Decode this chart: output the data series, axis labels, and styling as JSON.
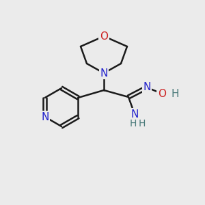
{
  "background_color": "#ebebeb",
  "bond_color": "#1a1a1a",
  "bond_width": 1.8,
  "atom_colors": {
    "C": "#1a1a1a",
    "N": "#2222cc",
    "O": "#cc2222",
    "H": "#4a7a7a"
  },
  "font_size": 11,
  "font_size_small": 9
}
